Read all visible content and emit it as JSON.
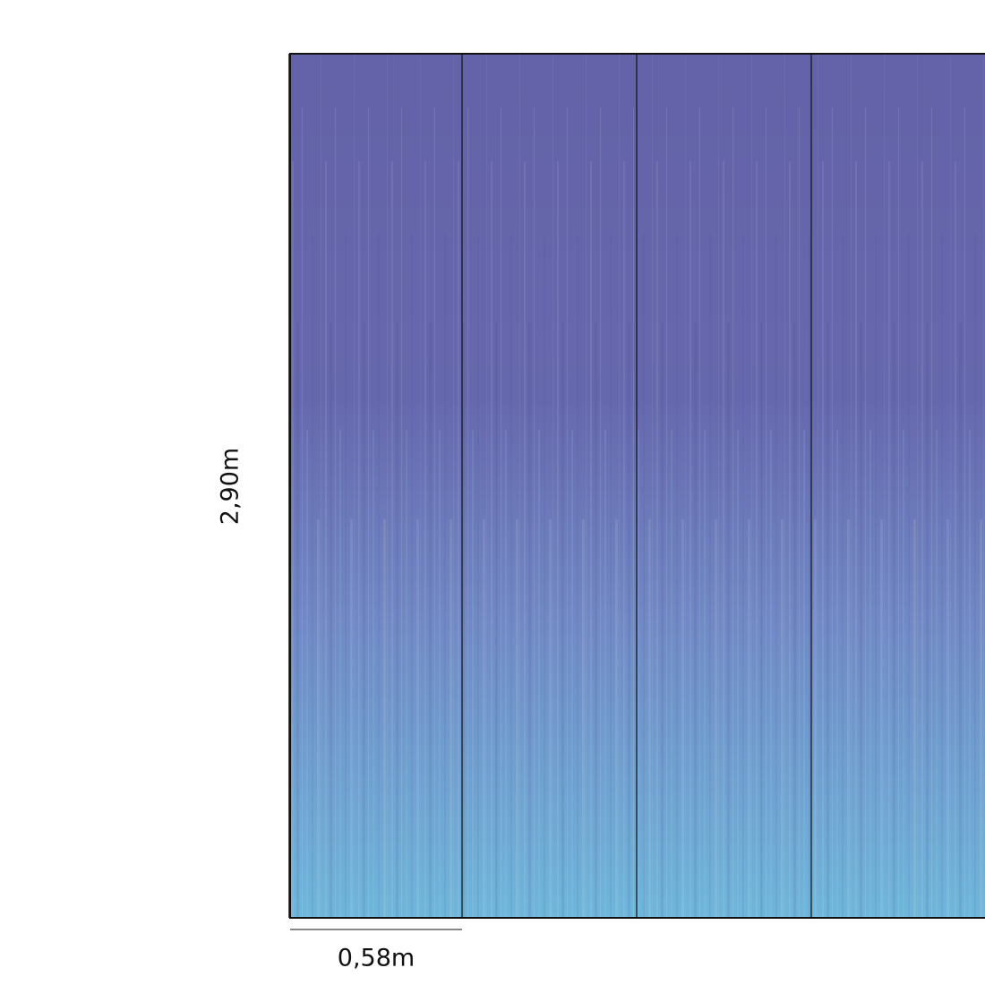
{
  "dimensions": {
    "height": "2,90m",
    "width": "0,58m"
  }
}
